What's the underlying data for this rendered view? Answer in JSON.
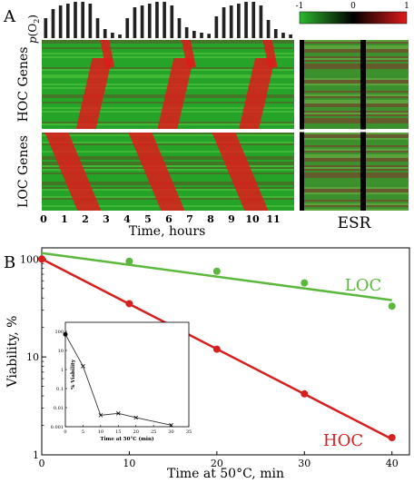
{
  "panel_a": {
    "letter": "A",
    "po2_label_p": "p",
    "po2_label_rest": "(O",
    "po2_label_sub": "2",
    "po2_label_end": ")",
    "hoc_label": "HOC Genes",
    "loc_label": "LOC Genes",
    "esr_label": "ESR",
    "x_label": "Time, hours",
    "x_ticks": [
      "0",
      "1",
      "2",
      "3",
      "4",
      "5",
      "6",
      "7",
      "8",
      "9",
      "10",
      "11"
    ],
    "colorbar_ticks": [
      "-1",
      "0",
      "1"
    ],
    "po2_bars": [
      0.55,
      0.8,
      0.9,
      0.95,
      1,
      1,
      0.95,
      0.55,
      0.25,
      0.15,
      0.1,
      0.55,
      0.85,
      0.9,
      0.95,
      1,
      1,
      0.9,
      0.55,
      0.3,
      0.2,
      0.15,
      0.12,
      0.6,
      0.85,
      0.9,
      0.95,
      1,
      1,
      0.9,
      0.5,
      0.25,
      0.15,
      0.1
    ],
    "colors": {
      "green": "#2db82d",
      "red": "#e01b1b",
      "black": "#000000"
    }
  },
  "panel_b": {
    "letter": "B",
    "chart_data": {
      "type": "scatter",
      "xlabel": "Time at 50°C, min",
      "ylabel": "Viability, %",
      "x_ticks": [
        "0",
        "10",
        "20",
        "30",
        "40"
      ],
      "y_ticks": [
        "1",
        "10",
        "100"
      ],
      "xlim": [
        0,
        42
      ],
      "ylim": [
        1,
        130
      ],
      "yscale": "log",
      "series": [
        {
          "name": "LOC",
          "color": "#5cb83c",
          "x": [
            0,
            10,
            20,
            30,
            40
          ],
          "y": [
            100,
            95,
            75,
            57,
            33
          ],
          "fit": [
            [
              0,
              115
            ],
            [
              40,
              38
            ]
          ]
        },
        {
          "name": "HOC",
          "color": "#d62020",
          "x": [
            0,
            10,
            20,
            30,
            40
          ],
          "y": [
            100,
            35,
            12,
            4.2,
            1.5
          ],
          "fit": [
            [
              0,
              100
            ],
            [
              40,
              1.45
            ]
          ]
        }
      ]
    },
    "inset": {
      "xlabel": "Time at 50°C (min)",
      "ylabel": "% Viability",
      "x_ticks": [
        "0",
        "5",
        "10",
        "15",
        "20",
        "25",
        "30",
        "35"
      ],
      "y_ticks": [
        "100",
        "10",
        "1",
        "0.1",
        "0.01",
        "0.001"
      ],
      "xlim": [
        0,
        35
      ],
      "ylim": [
        0.001,
        300
      ],
      "x": [
        0,
        5,
        10,
        15,
        20,
        30
      ],
      "y": [
        70,
        1.5,
        0.004,
        0.005,
        0.003,
        0.0012
      ]
    }
  }
}
